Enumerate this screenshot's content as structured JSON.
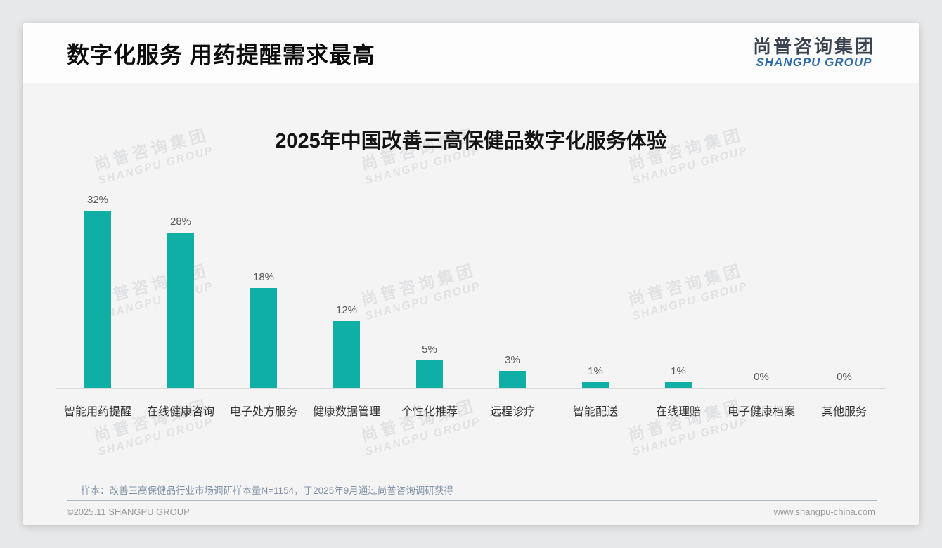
{
  "page": {
    "title": "数字化服务 用药提醒需求最高",
    "logo": {
      "cn": "尚普咨询集团",
      "en": "SHANGPU GROUP"
    },
    "note": "样本：改善三高保健品行业市场调研样本量N=1154，于2025年9月通过尚普咨询调研获得",
    "footer_left": "©2025.11 SHANGPU GROUP",
    "footer_right": "www.shangpu-china.com"
  },
  "watermark": {
    "line1": "尚普咨询集团",
    "line2": "SHANGPU GROUP"
  },
  "chart_data": {
    "type": "bar",
    "title": "2025年中国改善三高保健品数字化服务体验",
    "categories": [
      "智能用药提醒",
      "在线健康咨询",
      "电子处方服务",
      "健康数据管理",
      "个性化推荐",
      "远程诊疗",
      "智能配送",
      "在线理赔",
      "电子健康档案",
      "其他服务"
    ],
    "values": [
      32,
      28,
      18,
      12,
      5,
      3,
      1,
      1,
      0,
      0
    ],
    "value_labels": [
      "32%",
      "28%",
      "18%",
      "12%",
      "5%",
      "3%",
      "1%",
      "1%",
      "0%",
      "0%"
    ],
    "unit": "%",
    "bar_color": "#10afa5",
    "ylim": [
      0,
      35
    ],
    "xlabel": "",
    "ylabel": "",
    "grid": false,
    "legend": false,
    "data_labels": "above-bars",
    "baseline_color": "#d8d8d8"
  }
}
